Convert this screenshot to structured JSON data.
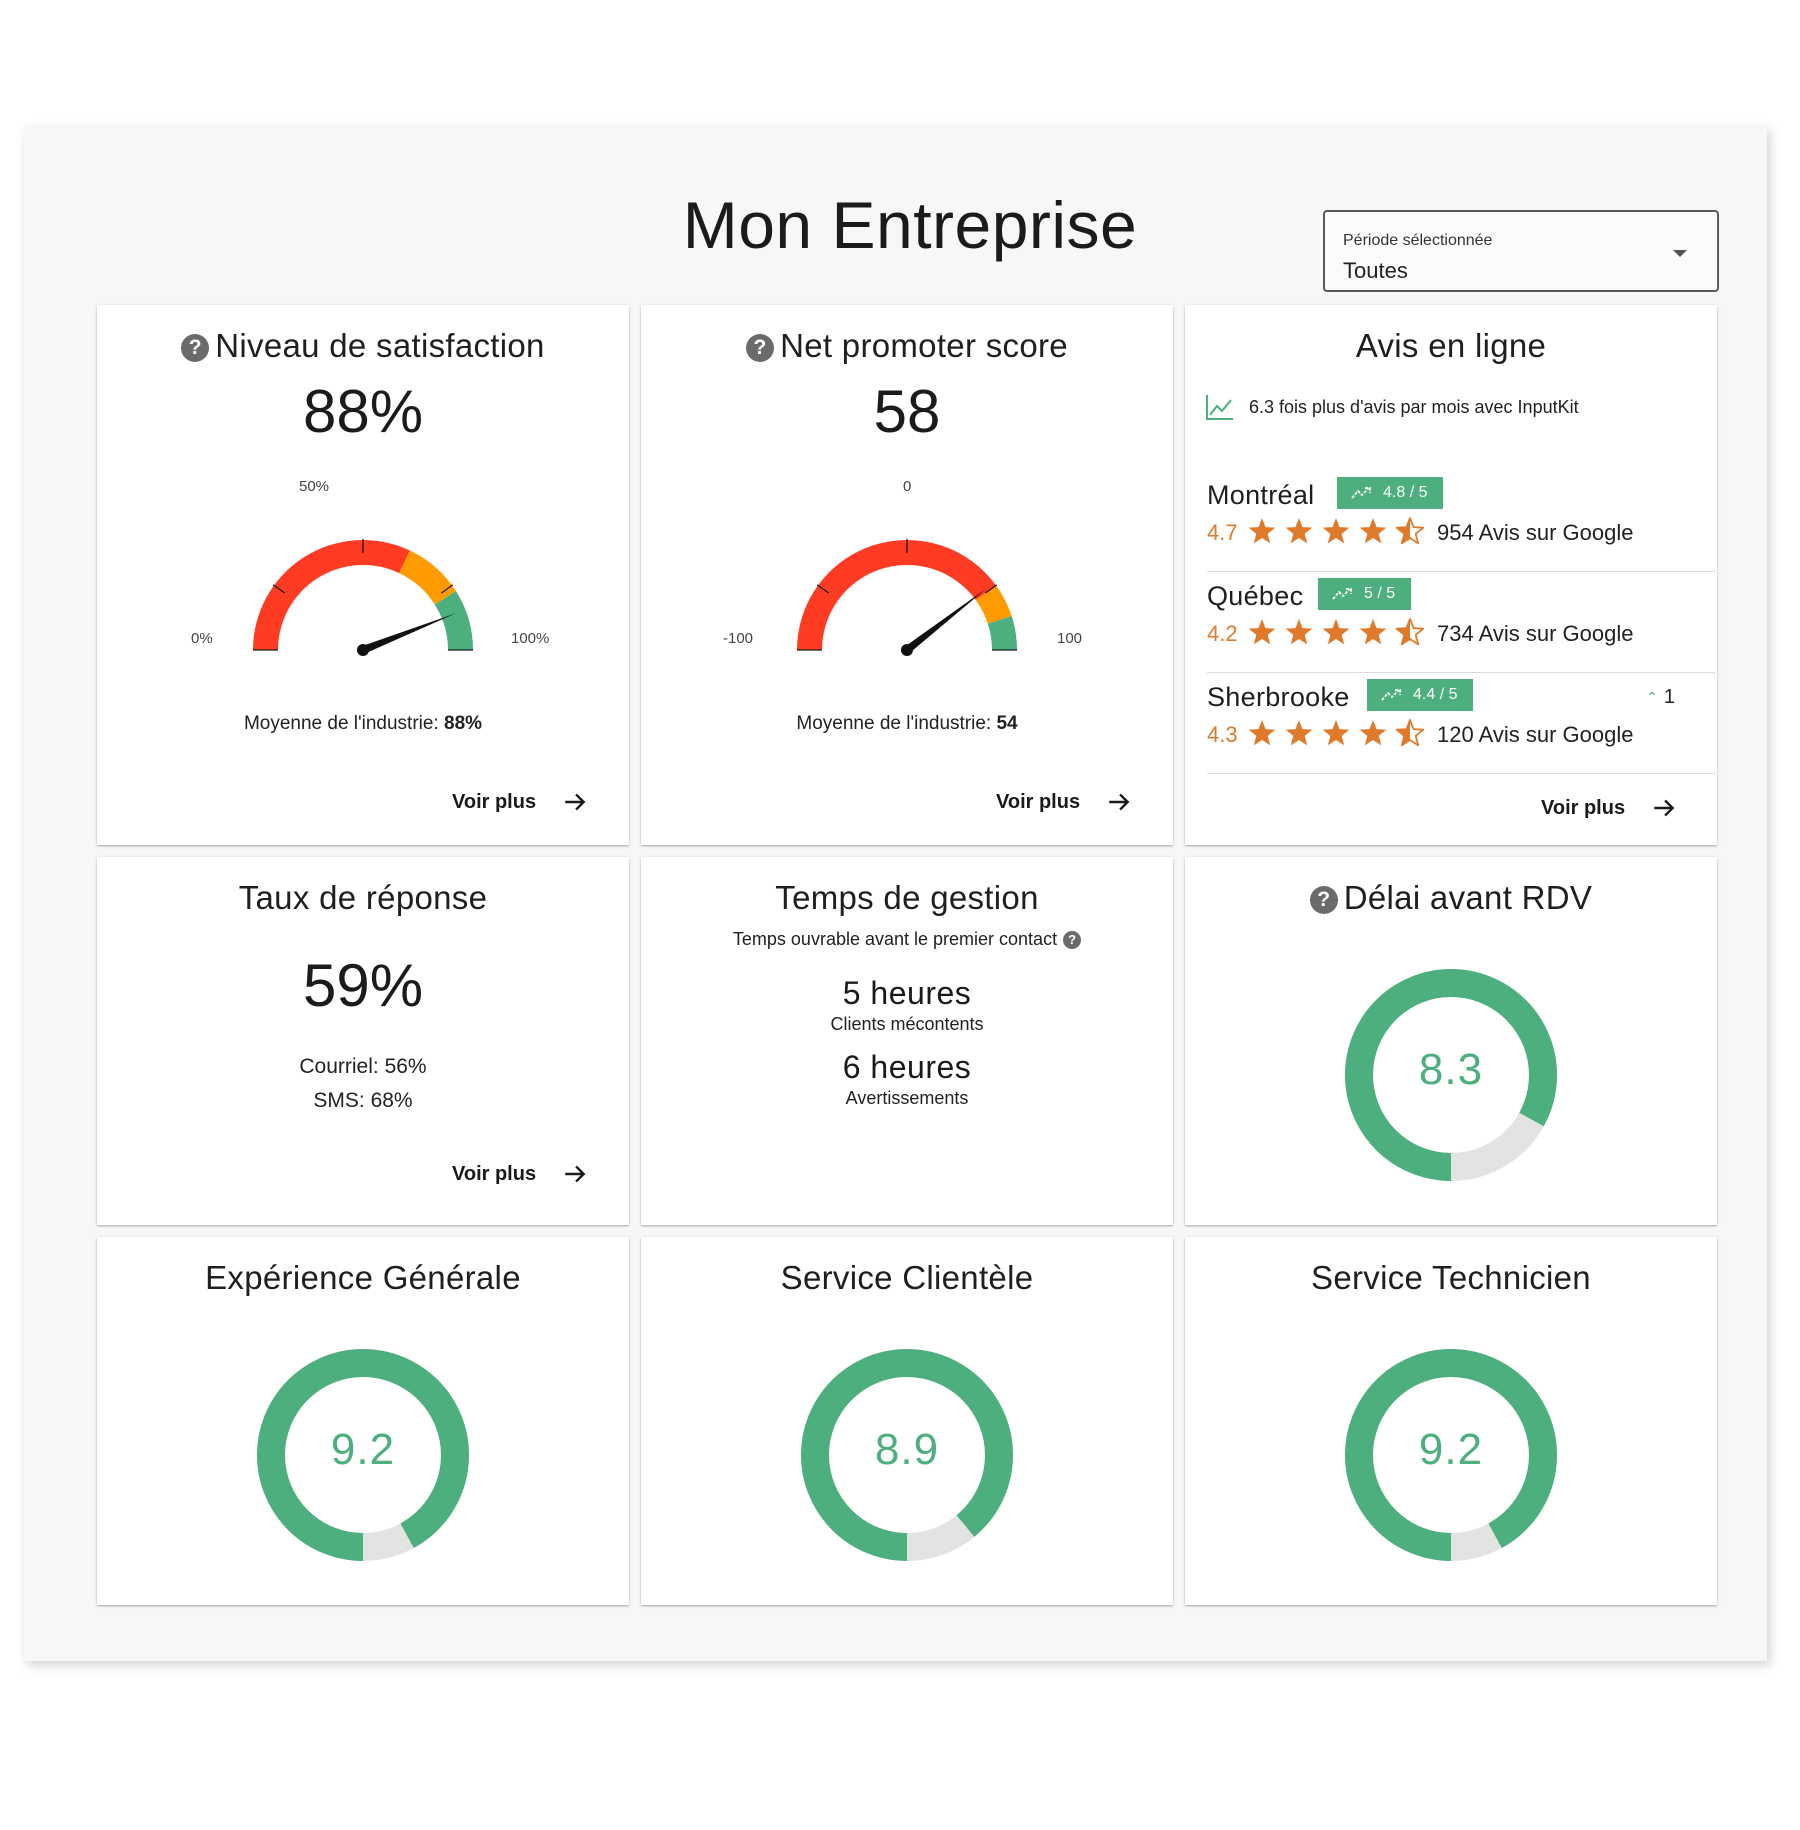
{
  "header": {
    "title": "Mon Entreprise"
  },
  "period": {
    "label": "Période sélectionnée",
    "value": "Toutes"
  },
  "satisfaction": {
    "title": "Niveau de satisfaction",
    "value": "88%",
    "value_number": 88,
    "min_label": "0%",
    "mid_label": "50%",
    "max_label": "100%",
    "industry_label": "Moyenne de l'industrie:",
    "industry_value": "88%",
    "link": "Voir plus"
  },
  "nps": {
    "title": "Net promoter score",
    "value": "58",
    "value_number": 58,
    "min_label": "-100",
    "mid_label": "0",
    "max_label": "100",
    "industry_label": "Moyenne de l'industrie:",
    "industry_value": "54",
    "link": "Voir plus"
  },
  "avis": {
    "title": "Avis en ligne",
    "note": "6.3 fois plus d'avis par mois avec InputKit",
    "locations": [
      {
        "name": "Montréal",
        "badge": "4.8 / 5",
        "rating": "4.7",
        "rating_number": 4.7,
        "count": "954 Avis sur Google",
        "change": ""
      },
      {
        "name": "Québec",
        "badge": "5 / 5",
        "rating": "4.2",
        "rating_number": 4.2,
        "count": "734 Avis sur Google",
        "change": ""
      },
      {
        "name": "Sherbrooke",
        "badge": "4.4 / 5",
        "rating": "4.3",
        "rating_number": 4.3,
        "count": "120 Avis sur Google",
        "change": "1"
      }
    ],
    "link": "Voir plus"
  },
  "reponse": {
    "title": "Taux de réponse",
    "value": "59%",
    "courriel": "Courriel: 56%",
    "sms": "SMS: 68%",
    "link": "Voir plus"
  },
  "gestion": {
    "title": "Temps de gestion",
    "subtitle": "Temps ouvrable avant le premier contact",
    "rows": [
      {
        "value": "5 heures",
        "label": "Clients mécontents"
      },
      {
        "value": "6 heures",
        "label": "Avertissements"
      }
    ]
  },
  "delai": {
    "title": "Délai avant RDV",
    "value": "8.3",
    "score": 8.3
  },
  "experience": {
    "title": "Expérience Générale",
    "value": "9.2",
    "score": 9.2
  },
  "service_clientele": {
    "title": "Service Clientèle",
    "value": "8.9",
    "score": 8.9
  },
  "service_technicien": {
    "title": "Service Technicien",
    "value": "9.2",
    "score": 9.2
  },
  "colors": {
    "green": "#4caf7d",
    "orange": "#ff9a00",
    "red": "#ff3b24",
    "star": "#e07a2b",
    "track": "#e3e3e3"
  }
}
